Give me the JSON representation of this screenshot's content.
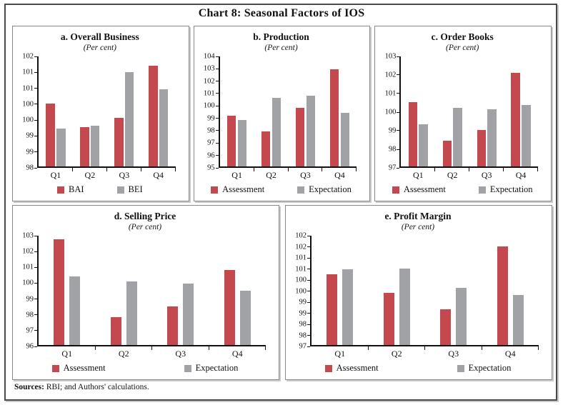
{
  "figure": {
    "title": "Chart 8: Seasonal Factors of IOS",
    "sources_label": "Sources:",
    "sources_text": " RBI; and Authors' calculations."
  },
  "colors": {
    "assessment_red": "#C4494E",
    "expectation_gray": "#A0A2A5",
    "axis": "#111111",
    "panel_border": "#8A8A8A",
    "outer_border": "#4A4A4A"
  },
  "chart_data": [
    {
      "id": "overall-business",
      "type": "bar",
      "title": "a. Overall Business",
      "subtitle": "(Per cent)",
      "categories": [
        "Q1",
        "Q2",
        "Q3",
        "Q4"
      ],
      "series": [
        {
          "name": "BAI",
          "color": "#C4494E",
          "values": [
            100.0,
            99.25,
            99.55,
            101.2
          ]
        },
        {
          "name": "BEI",
          "color": "#A0A2A5",
          "values": [
            99.2,
            99.3,
            101.0,
            100.45
          ]
        }
      ],
      "ylim": [
        98,
        101.5
      ],
      "ytick_labels_top_to_bottom": [
        "102",
        "101",
        "101",
        "100",
        "100",
        "99",
        "99",
        "98"
      ],
      "grid": false,
      "legend_position": "bottom"
    },
    {
      "id": "production",
      "type": "bar",
      "title": "b. Production",
      "subtitle": "(Per cent)",
      "categories": [
        "Q1",
        "Q2",
        "Q3",
        "Q4"
      ],
      "series": [
        {
          "name": "Assessment",
          "color": "#C4494E",
          "values": [
            99.15,
            97.85,
            99.8,
            102.95
          ]
        },
        {
          "name": "Expectation",
          "color": "#A0A2A5",
          "values": [
            98.8,
            100.6,
            100.8,
            99.4
          ]
        }
      ],
      "ylim": [
        95,
        104
      ],
      "ytick_labels_top_to_bottom": [
        "104",
        "103",
        "102",
        "101",
        "100",
        "99",
        "98",
        "97",
        "96",
        "95"
      ],
      "grid": false,
      "legend_position": "bottom"
    },
    {
      "id": "order-books",
      "type": "bar",
      "title": "c. Order Books",
      "subtitle": "(Per cent)",
      "categories": [
        "Q1",
        "Q2",
        "Q3",
        "Q4"
      ],
      "series": [
        {
          "name": "Assessment",
          "color": "#C4494E",
          "values": [
            100.5,
            98.4,
            99.0,
            102.1
          ]
        },
        {
          "name": "Expectation",
          "color": "#A0A2A5",
          "values": [
            99.3,
            100.2,
            100.1,
            100.35
          ]
        }
      ],
      "ylim": [
        97,
        103
      ],
      "ytick_labels_top_to_bottom": [
        "103",
        "102",
        "101",
        "100",
        "99",
        "98",
        "97"
      ],
      "grid": false,
      "legend_position": "bottom"
    },
    {
      "id": "selling-price",
      "type": "bar",
      "title": "d. Selling Price",
      "subtitle": "(Per cent)",
      "categories": [
        "Q1",
        "Q2",
        "Q3",
        "Q4"
      ],
      "series": [
        {
          "name": "Assessment",
          "color": "#C4494E",
          "values": [
            102.75,
            97.8,
            98.45,
            100.8
          ]
        },
        {
          "name": "Expectation",
          "color": "#A0A2A5",
          "values": [
            100.4,
            100.05,
            99.95,
            99.5
          ]
        }
      ],
      "ylim": [
        96,
        103
      ],
      "ytick_labels_top_to_bottom": [
        "103",
        "102",
        "101",
        "100",
        "99",
        "98",
        "97",
        "96"
      ],
      "grid": false,
      "legend_position": "bottom"
    },
    {
      "id": "profit-margin",
      "type": "bar",
      "title": "e. Profit Margin",
      "subtitle": "(Per cent)",
      "categories": [
        "Q1",
        "Q2",
        "Q3",
        "Q4"
      ],
      "series": [
        {
          "name": "Assessment",
          "color": "#C4494E",
          "values": [
            100.25,
            99.4,
            98.65,
            101.5
          ]
        },
        {
          "name": "Expectation",
          "color": "#A0A2A5",
          "values": [
            100.45,
            100.5,
            99.6,
            99.3
          ]
        }
      ],
      "ylim": [
        97,
        102
      ],
      "ytick_labels_top_to_bottom": [
        "102",
        "102",
        "101",
        "101",
        "100",
        "100",
        "99",
        "99",
        "98",
        "98",
        "97"
      ],
      "grid": false,
      "legend_position": "bottom"
    }
  ]
}
